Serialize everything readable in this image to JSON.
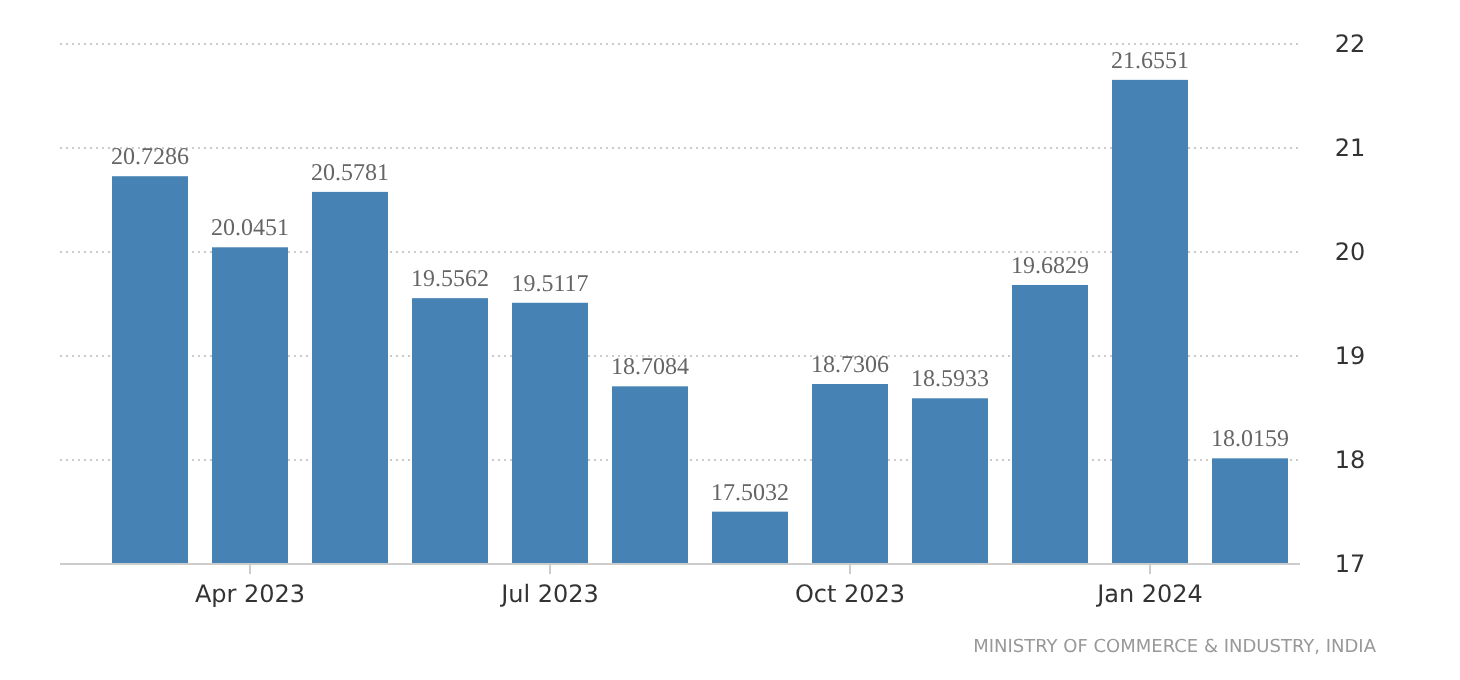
{
  "chart_data": {
    "type": "bar",
    "categories": [
      null,
      "Apr 2023",
      null,
      null,
      "Jul 2023",
      null,
      null,
      "Oct 2023",
      null,
      null,
      "Jan 2024",
      null
    ],
    "values": [
      20.7286,
      20.0451,
      20.5781,
      19.5562,
      19.5117,
      18.7084,
      17.5032,
      18.7306,
      18.5933,
      19.6829,
      21.6551,
      18.0159
    ],
    "color": "#4682b4",
    "ylim": [
      17,
      22
    ],
    "yticks": [
      17,
      18,
      19,
      20,
      21,
      22
    ],
    "grid": "y",
    "data_labels": true,
    "annotations": [
      "MINISTRY OF COMMERCE & INDUSTRY, INDIA"
    ]
  }
}
